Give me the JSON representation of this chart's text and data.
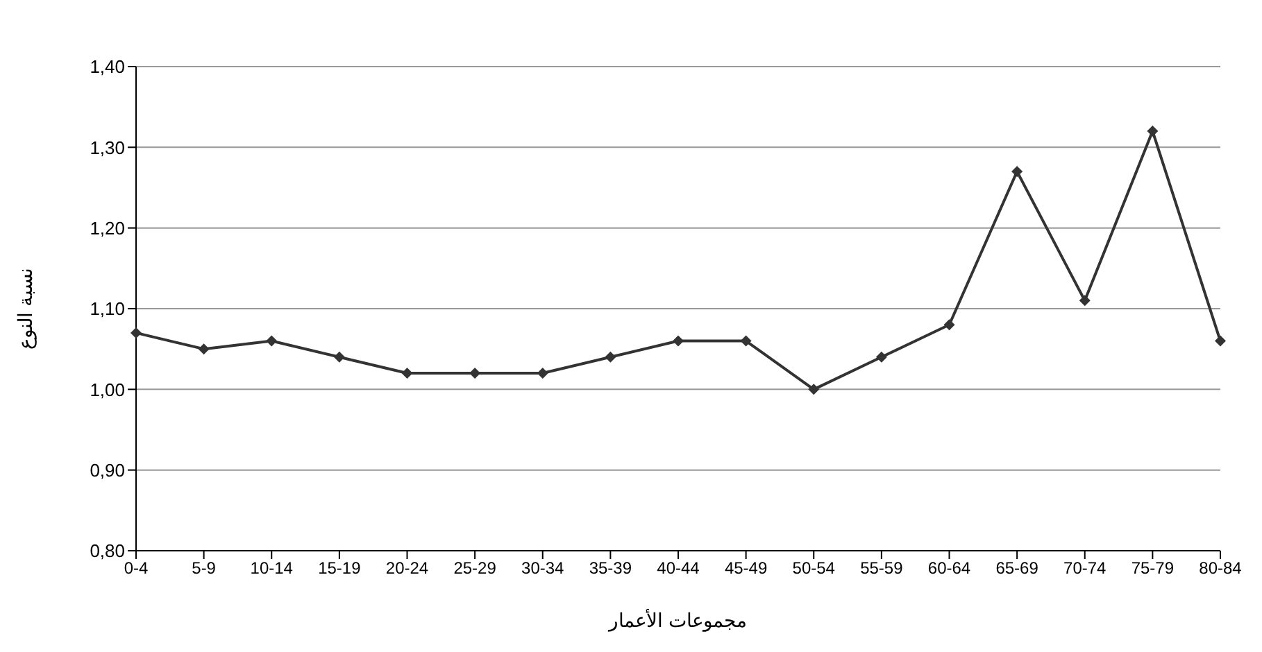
{
  "chart_data": {
    "type": "line",
    "xlabel": "مجموعات الأعمار",
    "ylabel": "نسبة النوع",
    "categories": [
      "0-4",
      "5-9",
      "10-14",
      "15-19",
      "20-24",
      "25-29",
      "30-34",
      "35-39",
      "40-44",
      "45-49",
      "50-54",
      "55-59",
      "60-64",
      "65-69",
      "70-74",
      "75-79",
      "80-84"
    ],
    "series": [
      {
        "color": "#333333",
        "values": [
          1.07,
          1.05,
          1.06,
          1.04,
          1.02,
          1.02,
          1.02,
          1.04,
          1.06,
          1.06,
          1.0,
          1.04,
          1.08,
          1.27,
          1.11,
          1.32,
          1.06
        ]
      }
    ],
    "ylim": [
      0.8,
      1.4
    ],
    "yticks": [
      {
        "value": 0.8,
        "label": "0,80"
      },
      {
        "value": 0.9,
        "label": "0,90"
      },
      {
        "value": 1.0,
        "label": "1,00"
      },
      {
        "value": 1.1,
        "label": "1,10"
      },
      {
        "value": 1.2,
        "label": "1,20"
      },
      {
        "value": 1.3,
        "label": "1,30"
      },
      {
        "value": 1.4,
        "label": "1,40"
      }
    ],
    "grid": "y",
    "legend": false,
    "marker": "diamond",
    "line_style": "solid"
  }
}
